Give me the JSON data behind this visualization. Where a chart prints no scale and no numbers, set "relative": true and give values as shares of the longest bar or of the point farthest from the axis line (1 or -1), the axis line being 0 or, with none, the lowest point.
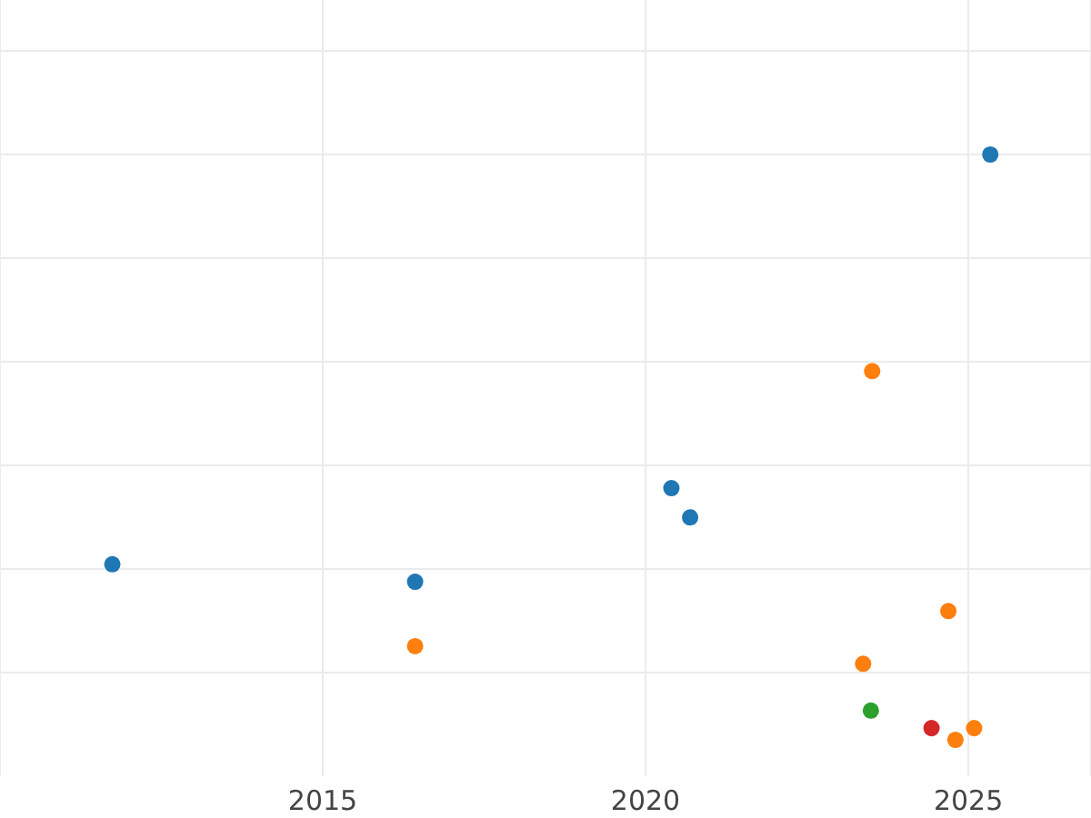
{
  "chart_data": {
    "type": "scatter",
    "relative": true,
    "xlim": [
      2010,
      2026.9
    ],
    "xticks": [
      2015,
      2020,
      2025
    ],
    "grid": true,
    "marker": "circle",
    "series": [
      {
        "color": "#1f77b4",
        "x": [
          2011.74,
          2016.43,
          2020.4,
          2020.69,
          2025.34
        ],
        "values": [
          0.3,
          0.27,
          0.43,
          0.38,
          1
        ]
      },
      {
        "color": "#ff7f0e",
        "x": [
          2023.51,
          2016.43,
          2024.69,
          2023.37,
          2024.8,
          2025.09
        ],
        "values": [
          0.63,
          0.16,
          0.22,
          0.13,
          0,
          0.02
        ]
      },
      {
        "color": "#2ca02c",
        "x": [
          2023.49
        ],
        "values": [
          0.05
        ]
      },
      {
        "color": "#d62728",
        "x": [
          2024.43
        ],
        "values": [
          0.02
        ]
      }
    ]
  }
}
